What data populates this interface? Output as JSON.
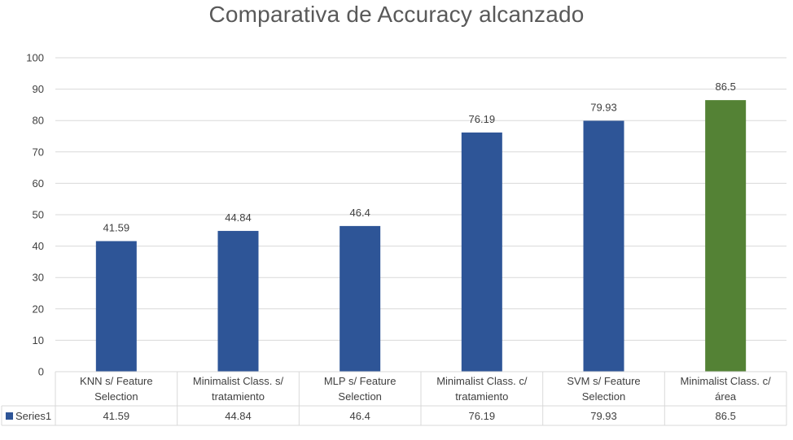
{
  "chart_data": {
    "type": "bar",
    "title": "Comparativa de Accuracy alcanzado",
    "categories": [
      [
        "KNN s/ Feature",
        "Selection"
      ],
      [
        "Minimalist Class. s/",
        "tratamiento"
      ],
      [
        "MLP s/ Feature",
        "Selection"
      ],
      [
        "Minimalist Class. c/",
        "tratamiento"
      ],
      [
        "SVM s/ Feature",
        "Selection"
      ],
      [
        "Minimalist Class. c/",
        "área"
      ]
    ],
    "series": [
      {
        "name": "Series1",
        "values": [
          41.59,
          44.84,
          46.4,
          76.19,
          79.93,
          86.5
        ],
        "value_labels": [
          "41.59",
          "44.84",
          "46.4",
          "76.19",
          "79.93",
          "86.5"
        ],
        "color": "#2E5597"
      }
    ],
    "highlight": {
      "index": 5,
      "color": "#548235"
    },
    "ylim": [
      0,
      100
    ],
    "yticks": [
      0,
      10,
      20,
      30,
      40,
      50,
      60,
      70,
      80,
      90,
      100
    ],
    "grid": true,
    "legend": "data-table"
  }
}
